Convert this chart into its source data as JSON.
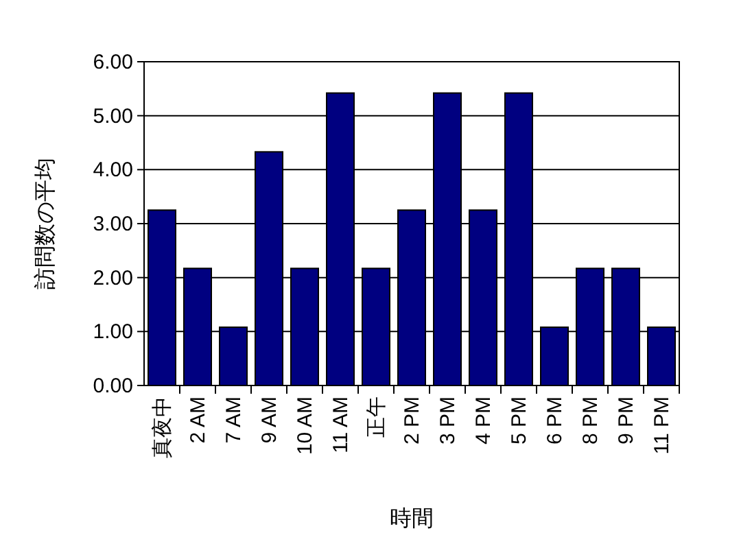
{
  "chart_data": {
    "type": "bar",
    "xlabel": "時間",
    "ylabel": "訪問数の平均",
    "categories": [
      "真夜中",
      "2 AM",
      "7 AM",
      "9 AM",
      "10 AM",
      "11 AM",
      "正午",
      "2 PM",
      "3 PM",
      "4 PM",
      "5 PM",
      "6 PM",
      "8 PM",
      "9 PM",
      "11 PM"
    ],
    "values": [
      3.25,
      2.17,
      1.08,
      4.33,
      2.17,
      5.42,
      2.17,
      3.25,
      5.42,
      3.25,
      5.42,
      1.08,
      2.17,
      2.17,
      1.08
    ],
    "color": "#000080",
    "ylim": [
      0,
      6
    ],
    "yticks": [
      {
        "value": 0,
        "label": "0.00"
      },
      {
        "value": 1,
        "label": "1.00"
      },
      {
        "value": 2,
        "label": "2.00"
      },
      {
        "value": 3,
        "label": "3.00"
      },
      {
        "value": 4,
        "label": "4.00"
      },
      {
        "value": 5,
        "label": "5.00"
      },
      {
        "value": 6,
        "label": "6.00"
      }
    ],
    "grid": "y"
  }
}
